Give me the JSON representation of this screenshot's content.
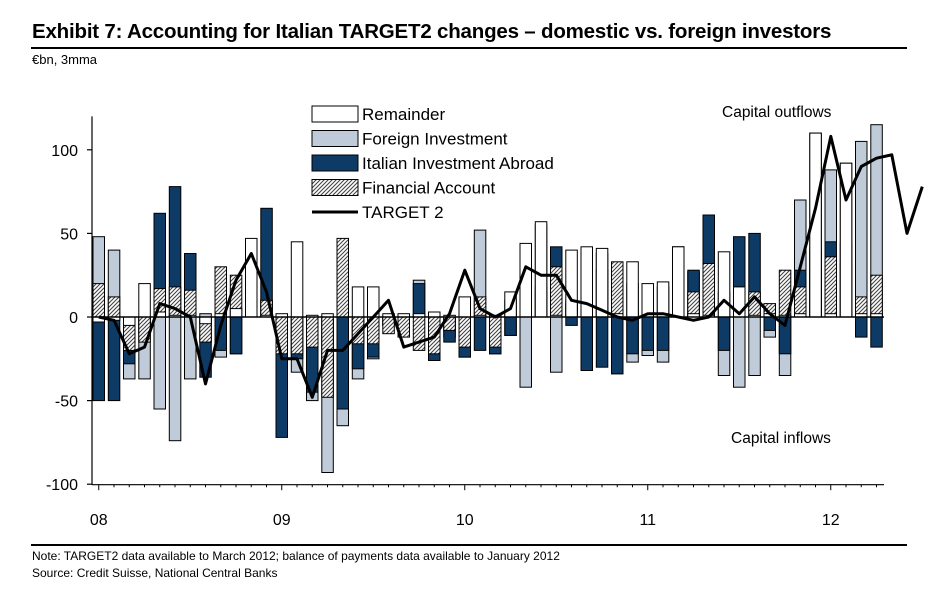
{
  "title": "Exhibit 7: Accounting  for Italian TARGET2  changes  – domestic  vs.  foreign  investors",
  "unit": "€bn, 3mma",
  "note": "Note: TARGET2 data  available  to March 2012;  balance of payments  data available to January  2012",
  "source": "Source:  Credit Suisse,  National Central Banks",
  "chart_data": {
    "type": "bar",
    "title": "Exhibit 7: Accounting  for Italian TARGET2  changes  – domestic  vs.  foreign  investors",
    "ylabel": "€bn, 3mma",
    "xlabel": "",
    "ylim": [
      -100,
      120
    ],
    "yticks": [
      100,
      50,
      0,
      -50,
      -100
    ],
    "ytick_labels": [
      "100",
      "50",
      "0",
      "-50",
      "-100"
    ],
    "xtick_labels": [
      "08",
      "09",
      "10",
      "11",
      "12"
    ],
    "annotations": [
      "Capital outflows",
      "Capital inflows"
    ],
    "legend": [
      "Remainder",
      "Foreign Investment",
      "Italian Investment Abroad",
      "Financial Account",
      "TARGET 2"
    ],
    "colors": {
      "remainder": "#ffffff",
      "foreign": "#bfcbd8",
      "italian": "#0e3a66",
      "financial_fill": "#ffffff",
      "financial_hatch": "#444444",
      "target2": "#000000"
    },
    "series": [
      {
        "name": "Foreign Investment",
        "values": [
          48,
          40,
          -37,
          -37,
          -55,
          -74,
          -37,
          2,
          -24,
          -22,
          18,
          10,
          -28,
          -33,
          -50,
          -93,
          -65,
          -37,
          -25,
          -5,
          -10,
          22,
          -26,
          -12,
          -24,
          52,
          -22,
          -11,
          -42,
          15,
          -33,
          8,
          -28,
          38,
          -34,
          -27,
          -23,
          -27,
          10,
          27,
          28,
          -35,
          -42,
          -35,
          -12,
          -35,
          70,
          110,
          88,
          92,
          105,
          115
        ]
      },
      {
        "name": "Italian Investment Abroad",
        "values": [
          -50,
          -50,
          -28,
          -10,
          62,
          78,
          38,
          -36,
          -20,
          -22,
          30,
          65,
          -72,
          -25,
          -45,
          -30,
          -55,
          -31,
          -24,
          -5,
          -8,
          20,
          -26,
          -15,
          -24,
          -20,
          -22,
          -11,
          42,
          55,
          42,
          -5,
          -32,
          -30,
          -34,
          -22,
          -20,
          -20,
          42,
          28,
          61,
          -20,
          48,
          50,
          -8,
          -22,
          28,
          40,
          45,
          44,
          -12,
          -18
        ]
      },
      {
        "name": "Financial Account",
        "values": [
          20,
          12,
          -20,
          -15,
          17,
          18,
          16,
          -15,
          30,
          25,
          12,
          10,
          -22,
          -22,
          -18,
          -48,
          47,
          -16,
          -16,
          -10,
          -12,
          -20,
          -22,
          -8,
          -18,
          12,
          -18,
          10,
          15,
          18,
          30,
          10,
          40,
          28,
          33,
          20,
          14,
          18,
          30,
          15,
          32,
          15,
          18,
          15,
          8,
          28,
          18,
          28,
          36,
          32,
          12,
          25
        ]
      },
      {
        "name": "Remainder",
        "values": [
          -3,
          -2,
          -5,
          20,
          3,
          1,
          1,
          -4,
          2,
          5,
          47,
          1,
          2,
          45,
          1,
          2,
          0,
          18,
          18,
          2,
          2,
          2,
          3,
          1,
          12,
          1,
          1,
          15,
          44,
          57,
          1,
          40,
          42,
          41,
          2,
          33,
          20,
          21,
          42,
          2,
          1,
          39,
          18,
          1,
          2,
          1,
          2,
          110,
          2,
          92,
          2,
          2
        ]
      },
      {
        "name": "TARGET 2",
        "type": "line",
        "values": [
          0,
          -2,
          -22,
          -18,
          8,
          5,
          0,
          -40,
          -5,
          22,
          38,
          15,
          -25,
          -25,
          -48,
          -20,
          -20,
          -10,
          0,
          10,
          -18,
          -15,
          -12,
          2,
          28,
          5,
          0,
          5,
          30,
          25,
          25,
          10,
          8,
          4,
          0,
          -2,
          2,
          2,
          0,
          -2,
          0,
          10,
          2,
          12,
          2,
          -5,
          30,
          65,
          108,
          70,
          90,
          95,
          97,
          50,
          78
        ]
      }
    ]
  }
}
